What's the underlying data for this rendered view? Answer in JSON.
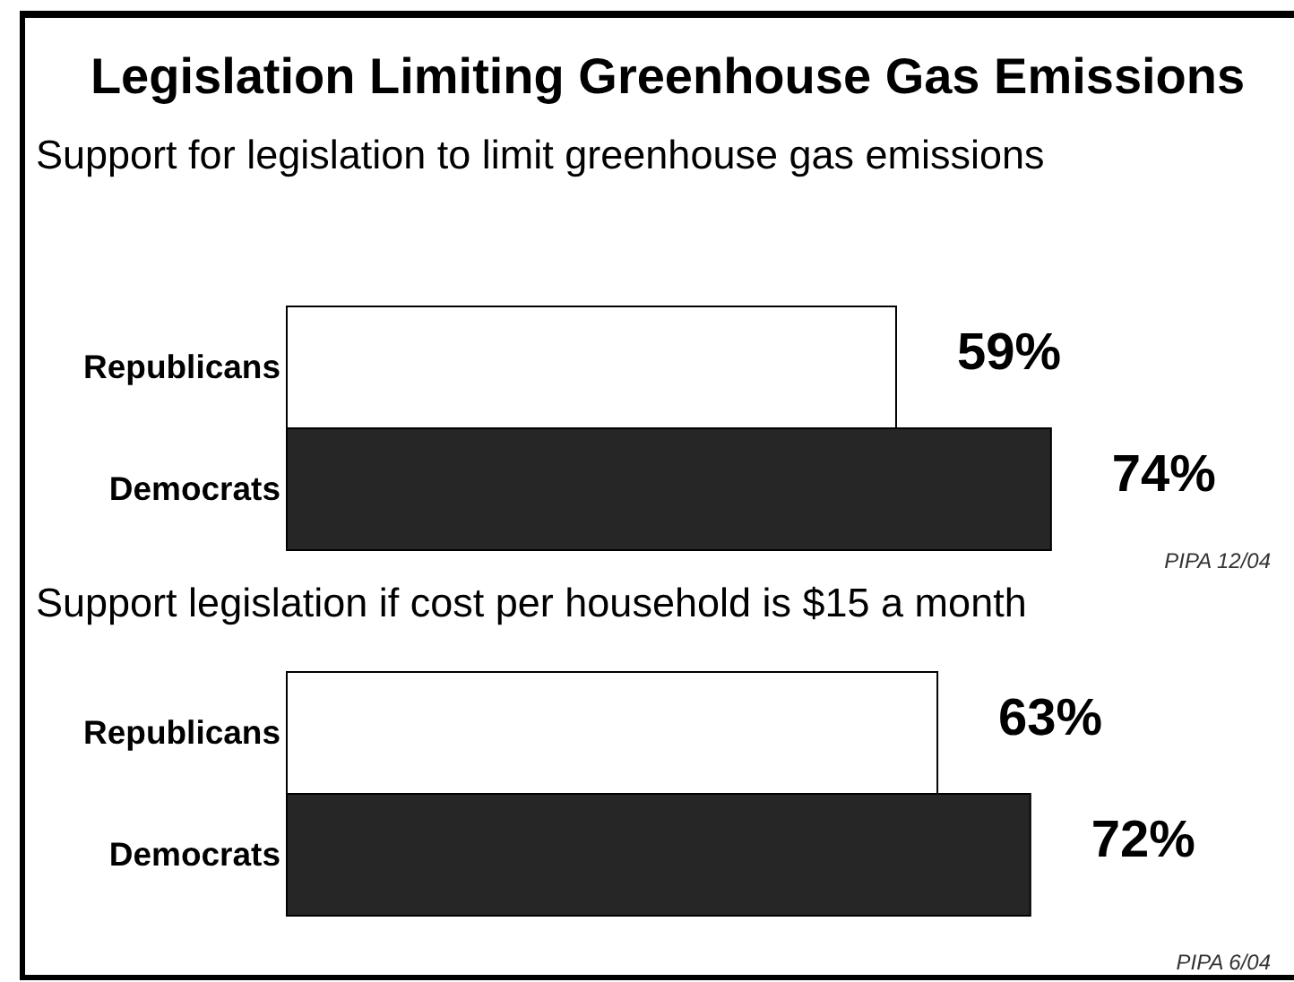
{
  "chart_data": [
    {
      "type": "bar",
      "orientation": "horizontal",
      "title": "Legislation Limiting Greenhouse Gas Emissions",
      "subtitle": "Support for legislation to limit greenhouse gas emissions",
      "categories": [
        "Republicans",
        "Democrats"
      ],
      "values": [
        59,
        74
      ],
      "colors": [
        "#ffffff",
        "#262626"
      ],
      "value_labels": [
        "59%",
        "74%"
      ],
      "tick_labels": "y",
      "annotations": [
        "PIPA 12/04"
      ]
    },
    {
      "type": "bar",
      "orientation": "horizontal",
      "title": "Support legislation if cost per household is $15 a month",
      "categories": [
        "Republicans",
        "Democrats"
      ],
      "values": [
        63,
        72
      ],
      "colors": [
        "#ffffff",
        "#262626"
      ],
      "value_labels": [
        "63%",
        "72%"
      ],
      "tick_labels": "y",
      "annotations": [
        "PIPA 6/04"
      ]
    }
  ]
}
